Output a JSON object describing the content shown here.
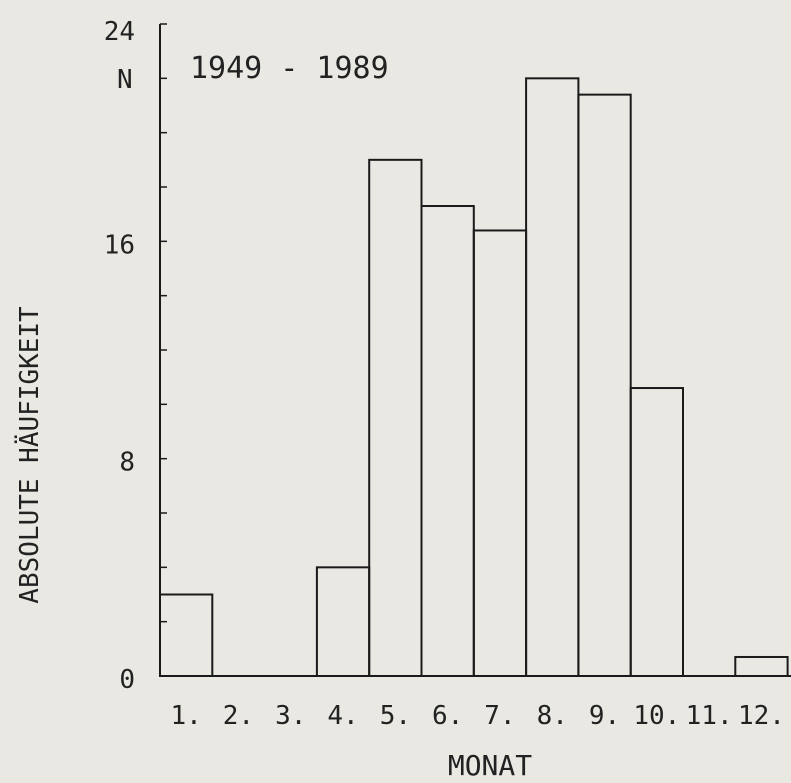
{
  "chart_data": {
    "type": "bar",
    "title": "1949 - 1989",
    "ylabel": "ABSOLUTE HÄUFIGKEIT",
    "y_unit": "N",
    "xlabel": "MONAT",
    "categories": [
      "1.",
      "2.",
      "3.",
      "4.",
      "5.",
      "6.",
      "7.",
      "8.",
      "9.",
      "10.",
      "11.",
      "12."
    ],
    "values": [
      3,
      0,
      0,
      4,
      19,
      17.3,
      16.4,
      22,
      21.4,
      10.6,
      0,
      0.7
    ],
    "ylim": [
      0,
      24
    ],
    "yticks": [
      "0",
      "8",
      "16",
      "24"
    ],
    "grid": false,
    "legend": "none"
  }
}
